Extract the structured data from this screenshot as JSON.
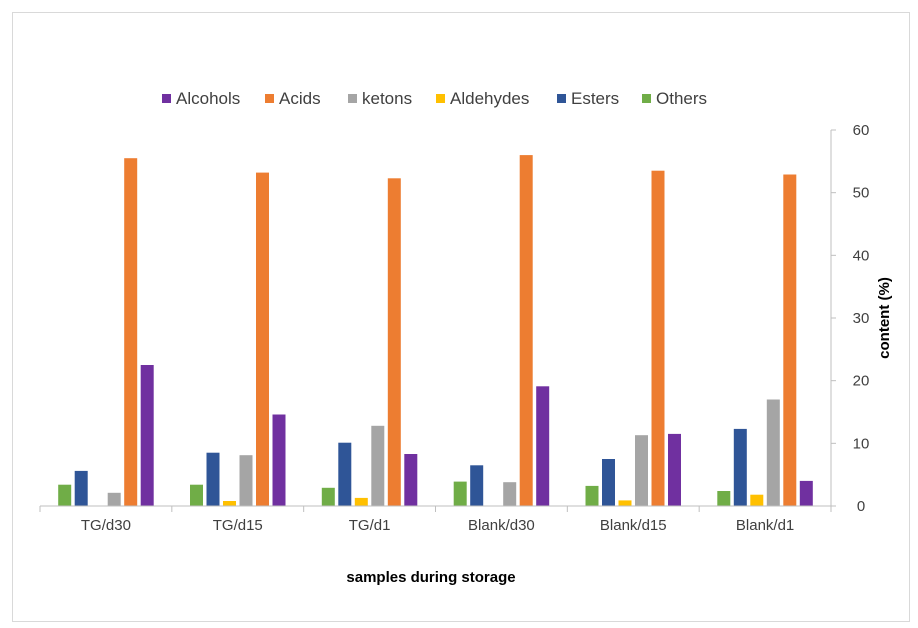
{
  "chart_data": {
    "type": "bar",
    "title": "",
    "xlabel": "samples during storage",
    "ylabel": "content (%)",
    "ylim": [
      0,
      60
    ],
    "yticks": [
      "0",
      "10",
      "20",
      "30",
      "40",
      "50",
      "60"
    ],
    "y_axis_side": "right",
    "grid": false,
    "legend_position": "top",
    "categories": [
      "TG/d30",
      "TG/d15",
      "TG/d1",
      "Blank/d30",
      "Blank/d15",
      "Blank/d1"
    ],
    "series": [
      {
        "name": "Others",
        "color": "#70ad47",
        "values": [
          3.4,
          3.4,
          2.9,
          3.9,
          3.2,
          2.4
        ]
      },
      {
        "name": "Esters",
        "color": "#2f5597",
        "values": [
          5.6,
          8.5,
          10.1,
          6.5,
          7.5,
          12.3
        ]
      },
      {
        "name": "Aldehydes",
        "color": "#ffc000",
        "values": [
          0.0,
          0.8,
          1.3,
          0.0,
          0.9,
          1.8
        ]
      },
      {
        "name": "ketons",
        "color": "#a5a5a5",
        "values": [
          2.1,
          8.1,
          12.8,
          3.8,
          11.3,
          17.0
        ]
      },
      {
        "name": "Acids",
        "color": "#ed7d31",
        "values": [
          55.5,
          53.2,
          52.3,
          56.0,
          53.5,
          52.9
        ]
      },
      {
        "name": "Alcohols",
        "color": "#7030a0",
        "values": [
          22.5,
          14.6,
          8.3,
          19.1,
          11.5,
          4.0
        ]
      }
    ],
    "legend_order": [
      "Alcohols",
      "Acids",
      "ketons",
      "Aldehydes",
      "Esters",
      "Others"
    ]
  }
}
